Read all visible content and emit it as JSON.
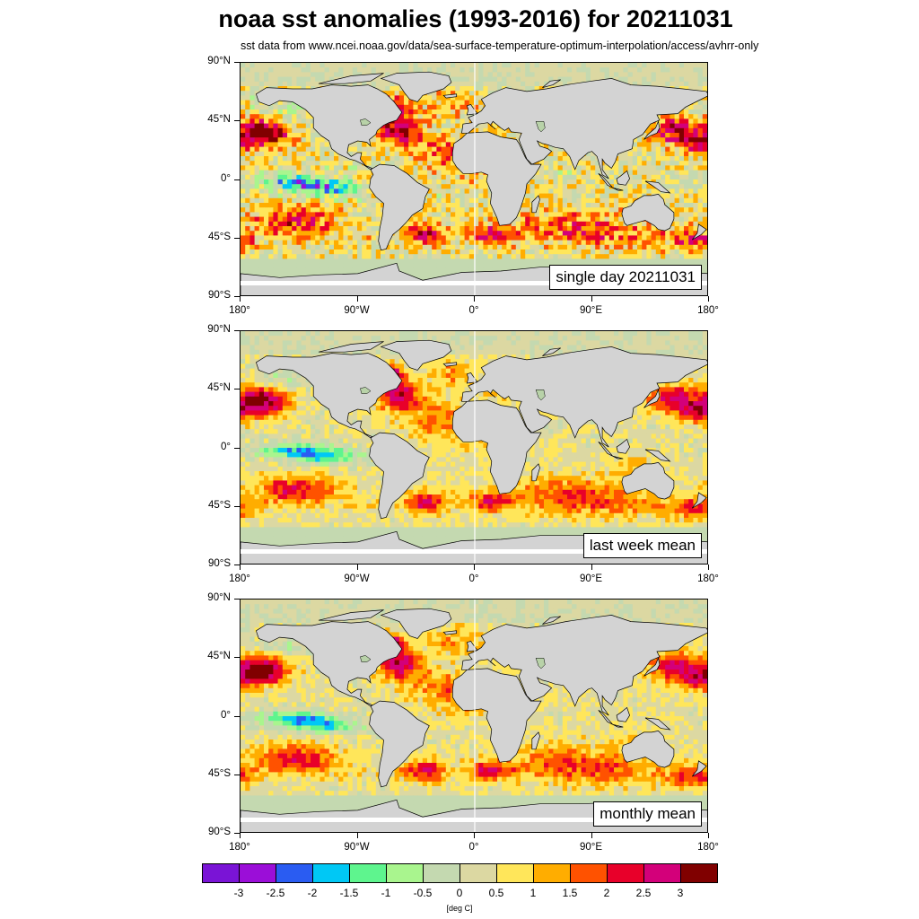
{
  "title": "noaa sst anomalies (1993-2016) for 20211031",
  "subtitle": "sst data from www.ncei.noaa.gov/data/sea-surface-temperature-optimum-interpolation/access/avhrr-only",
  "panels": [
    {
      "label": "single day 20211031"
    },
    {
      "label": "last week mean"
    },
    {
      "label": "monthly mean"
    }
  ],
  "axes": {
    "y_ticks": [
      "90°N",
      "45°N",
      "0°",
      "45°S",
      "90°S"
    ],
    "x_ticks": [
      "180°",
      "90°W",
      "0°",
      "90°E",
      "180°"
    ]
  },
  "colorbar": {
    "unit": "[deg C]",
    "labels": [
      "-3",
      "-2.5",
      "-2",
      "-1.5",
      "-1",
      "-0.5",
      "0",
      "0.5",
      "1",
      "1.5",
      "2",
      "2.5",
      "3"
    ],
    "colors": [
      "#7a14d6",
      "#9b0ed8",
      "#2a5cf2",
      "#00c8f5",
      "#5ef58e",
      "#a9f58e",
      "#c4d9b0",
      "#dcd8a2",
      "#ffe65a",
      "#ffad00",
      "#ff5200",
      "#e8002a",
      "#d3007a",
      "#800000"
    ]
  },
  "colors": {
    "land": "#d3d3d3",
    "coast": "#000000",
    "meridian": "#ffffff"
  }
}
